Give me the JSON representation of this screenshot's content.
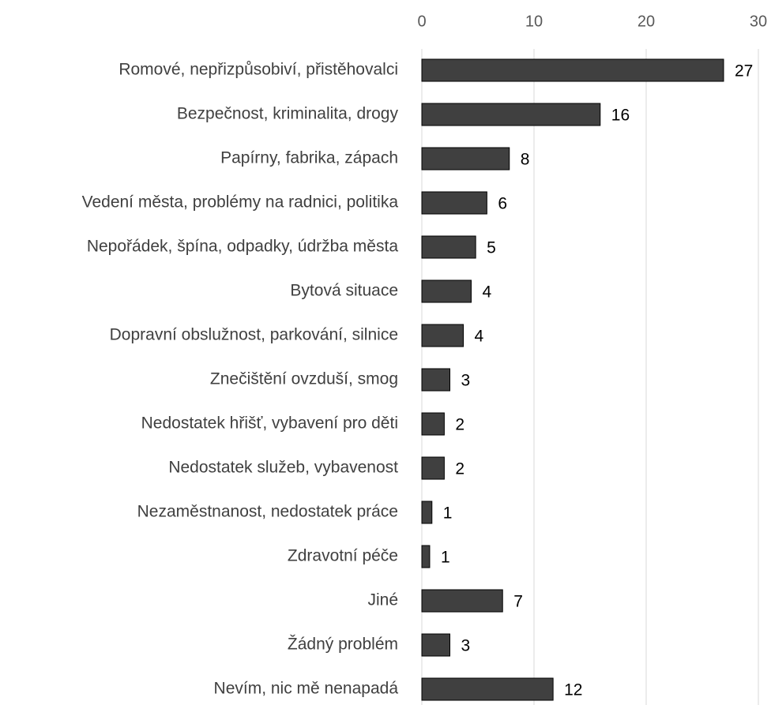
{
  "chart_data": {
    "type": "bar",
    "orientation": "horizontal",
    "categories": [
      "Romové, nepřizpůsobiví, přistěhovalci",
      "Bezpečnost, kriminalita, drogy",
      "Papírny, fabrika, zápach",
      "Vedení města, problémy na radnici, politika",
      "Nepořádek, špína, odpadky, údržba města",
      "Bytová situace",
      "Dopravní obslužnost, parkování, silnice",
      "Znečištění ovzduší, smog",
      "Nedostatek hřišť, vybavení pro děti",
      "Nedostatek služeb, vybavenost",
      "Nezaměstnanost, nedostatek práce",
      "Zdravotní péče",
      "Jiné",
      "Žádný problém",
      "Nevím, nic mě nenapadá"
    ],
    "values": [
      26.9,
      15.9,
      7.8,
      5.8,
      4.8,
      4.4,
      3.7,
      2.5,
      2.0,
      2.0,
      0.9,
      0.7,
      7.2,
      2.5,
      11.7
    ],
    "value_labels": [
      "27",
      "16",
      "8",
      "6",
      "5",
      "4",
      "4",
      "3",
      "2",
      "2",
      "1",
      "1",
      "7",
      "3",
      "12"
    ],
    "color": "#404040",
    "xlim": [
      0,
      30
    ],
    "xticks": [
      0,
      10,
      20,
      30
    ],
    "grid": true
  }
}
